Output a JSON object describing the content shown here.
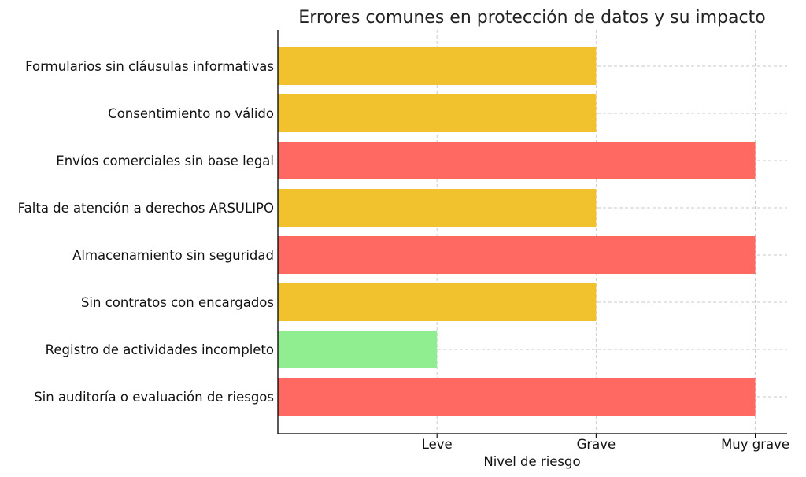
{
  "chart_data": {
    "type": "bar",
    "orientation": "horizontal",
    "title": "Errores comunes en protección de datos y su impacto",
    "xlabel": "Nivel de riesgo",
    "ylabel": "",
    "x_ticks": [
      {
        "value": 1,
        "label": "Leve"
      },
      {
        "value": 2,
        "label": "Grave"
      },
      {
        "value": 3,
        "label": "Muy grave"
      }
    ],
    "xlim": [
      0,
      3.2
    ],
    "grid": true,
    "categories": [
      "Formularios sin cláusulas informativas",
      "Consentimiento no válido",
      "Envíos comerciales sin base legal",
      "Falta de atención a derechos ARSULIPO",
      "Almacenamiento sin seguridad",
      "Sin contratos con encargados",
      "Registro de actividades incompleto",
      "Sin auditoría o evaluación de riesgos"
    ],
    "values": [
      2,
      2,
      3,
      2,
      3,
      2,
      1,
      3
    ],
    "colors": [
      "#f2c12e",
      "#f2c12e",
      "#ff6961",
      "#f2c12e",
      "#ff6961",
      "#f2c12e",
      "#90ee90",
      "#ff6961"
    ]
  }
}
